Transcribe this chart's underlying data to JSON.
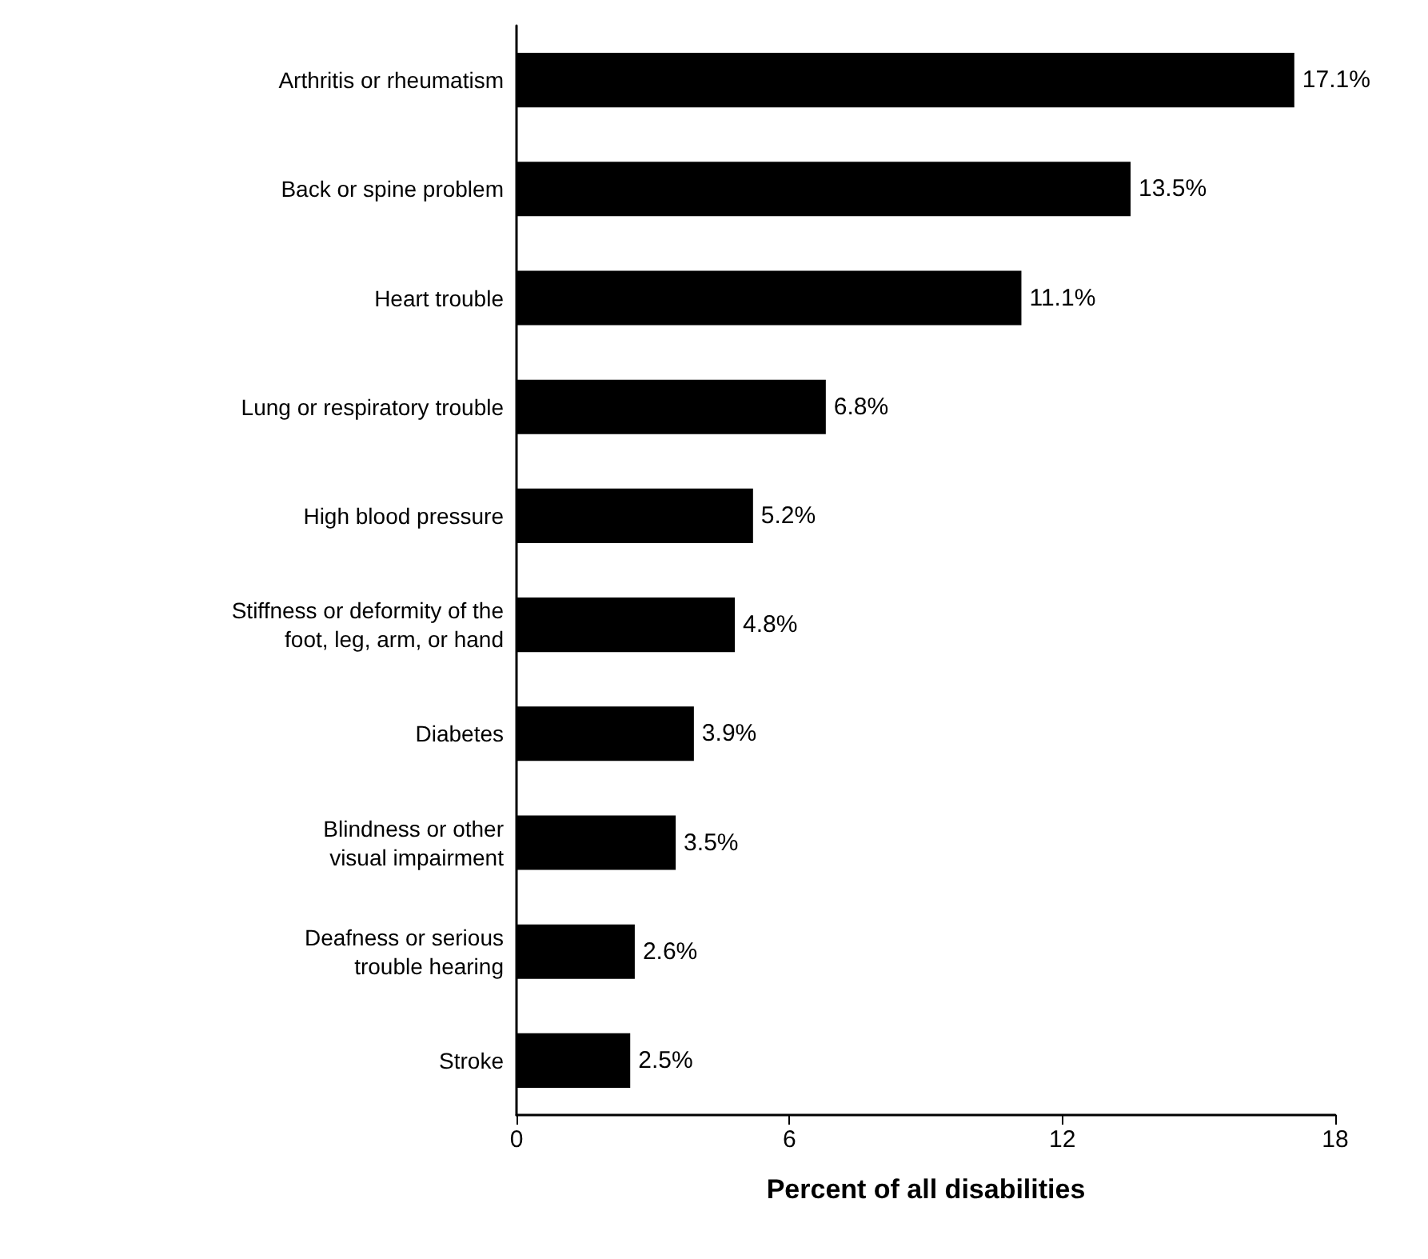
{
  "chart_data": {
    "type": "bar",
    "orientation": "horizontal",
    "xlabel": "Percent of all disabilities",
    "categories": [
      "Arthritis or rheumatism",
      "Back or spine problem",
      "Heart trouble",
      "Lung or respiratory trouble",
      "High blood pressure",
      "Stiffness or deformity of the\nfoot, leg, arm, or hand",
      "Diabetes",
      "Blindness or other\nvisual impairment",
      "Deafness or serious\ntrouble hearing",
      "Stroke"
    ],
    "values": [
      17.1,
      13.5,
      11.1,
      6.8,
      5.2,
      4.8,
      3.9,
      3.5,
      2.6,
      2.5
    ],
    "value_labels": [
      "17.1%",
      "13.5%",
      "11.1%",
      "6.8%",
      "5.2%",
      "4.8%",
      "3.9%",
      "3.5%",
      "2.6%",
      "2.5%"
    ],
    "color": "#000000",
    "xlim": [
      0,
      18
    ],
    "xticks": [
      0,
      6,
      12,
      18
    ],
    "grid": false
  }
}
